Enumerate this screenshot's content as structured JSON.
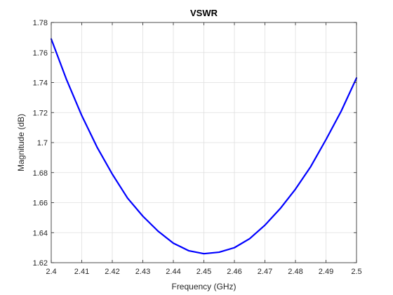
{
  "chart_data": {
    "type": "line",
    "title": "VSWR",
    "xlabel": "Frequency (GHz)",
    "ylabel": "Magnitude (dB)",
    "xlim": [
      2.4,
      2.5
    ],
    "ylim": [
      1.62,
      1.78
    ],
    "grid": true,
    "x_ticks": [
      "2.4",
      "2.41",
      "2.42",
      "2.43",
      "2.44",
      "2.45",
      "2.46",
      "2.47",
      "2.48",
      "2.49",
      "2.5"
    ],
    "y_ticks": [
      "1.62",
      "1.64",
      "1.66",
      "1.68",
      "1.7",
      "1.72",
      "1.74",
      "1.76",
      "1.78"
    ],
    "series": [
      {
        "color": "#0000ff",
        "x": [
          2.4,
          2.405,
          2.41,
          2.415,
          2.42,
          2.425,
          2.43,
          2.435,
          2.44,
          2.445,
          2.45,
          2.455,
          2.46,
          2.465,
          2.47,
          2.475,
          2.48,
          2.485,
          2.49,
          2.495,
          2.5
        ],
        "y": [
          1.769,
          1.742,
          1.718,
          1.697,
          1.679,
          1.663,
          1.651,
          1.641,
          1.633,
          1.628,
          1.626,
          1.627,
          1.63,
          1.636,
          1.645,
          1.656,
          1.669,
          1.684,
          1.702,
          1.721,
          1.743
        ]
      }
    ]
  }
}
